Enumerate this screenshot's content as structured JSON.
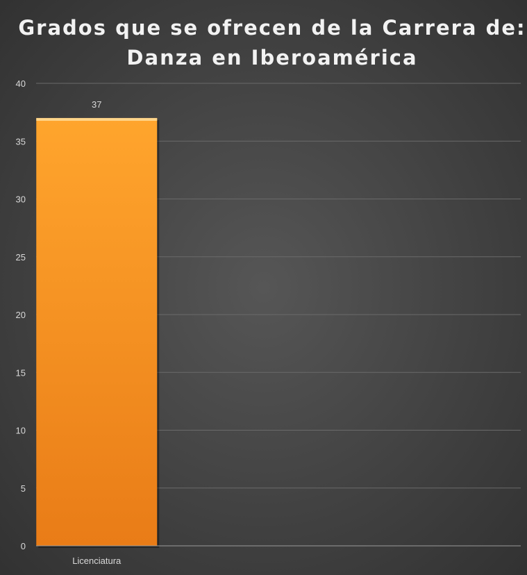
{
  "chart_data": {
    "type": "bar",
    "title_lines": [
      "Grados que se ofrecen de la Carrera de:",
      "Danza en Iberoamérica"
    ],
    "categories": [
      "Licenciatura"
    ],
    "values": [
      37
    ],
    "data_labels": [
      "37"
    ],
    "ylim": [
      0,
      40
    ],
    "yticks": [
      0,
      5,
      10,
      15,
      20,
      25,
      30,
      35,
      40
    ],
    "xlabel": "",
    "ylabel": "",
    "grid": true,
    "legend": "none"
  },
  "colors": {
    "background_center": "#565656",
    "background_edge": "#323232",
    "bar_light": "#ffa52d",
    "bar_dark": "#e97c17",
    "bar_top": "#ffd58a",
    "gridline": "#6a6a6a",
    "axis": "#9a9a9a",
    "text": "#d9d9d9",
    "title": "#f2f2f2"
  }
}
